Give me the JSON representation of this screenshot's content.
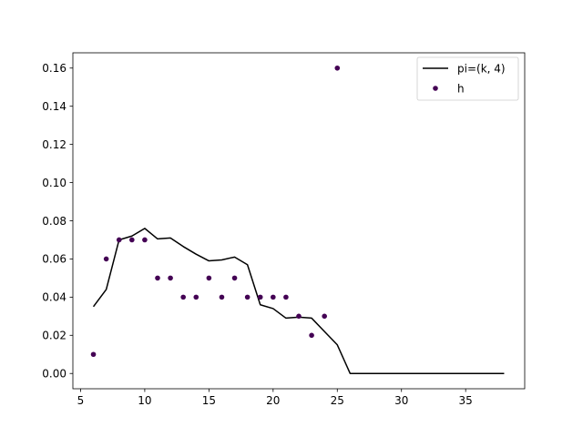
{
  "chart_data": {
    "type": "line",
    "title": "",
    "xlabel": "",
    "ylabel": "",
    "xlim": [
      4.4,
      39.6
    ],
    "ylim": [
      -0.008,
      0.168
    ],
    "xticks": [
      5,
      10,
      15,
      20,
      25,
      30,
      35
    ],
    "xtick_labels": [
      "5",
      "10",
      "15",
      "20",
      "25",
      "30",
      "35"
    ],
    "yticks": [
      0.0,
      0.02,
      0.04,
      0.06,
      0.08,
      0.1,
      0.12,
      0.14,
      0.16
    ],
    "ytick_labels": [
      "0.00",
      "0.02",
      "0.04",
      "0.06",
      "0.08",
      "0.10",
      "0.12",
      "0.14",
      "0.16"
    ],
    "grid": false,
    "legend_position": "top-right",
    "series": [
      {
        "name": "pi=(k, 4)",
        "kind": "line",
        "color": "#000000",
        "x": [
          6,
          7,
          8,
          9,
          10,
          11,
          12,
          13,
          14,
          15,
          16,
          17,
          18,
          19,
          20,
          21,
          22,
          23,
          24,
          25,
          26,
          27,
          28,
          29,
          30,
          31,
          32,
          33,
          34,
          35,
          36,
          37,
          38
        ],
        "y": [
          0.035,
          0.044,
          0.07,
          0.072,
          0.076,
          0.0705,
          0.071,
          0.0665,
          0.0625,
          0.059,
          0.0595,
          0.061,
          0.057,
          0.036,
          0.034,
          0.029,
          0.0295,
          0.029,
          0.022,
          0.015,
          0.0,
          0.0,
          0.0,
          0.0,
          0.0,
          0.0,
          0.0,
          0.0,
          0.0,
          0.0,
          0.0,
          0.0,
          0.0
        ]
      },
      {
        "name": "h",
        "kind": "scatter",
        "color": "#440154",
        "x": [
          6,
          7,
          8,
          9,
          10,
          11,
          12,
          13,
          14,
          15,
          16,
          17,
          18,
          19,
          20,
          21,
          22,
          23,
          24,
          25
        ],
        "y": [
          0.01,
          0.06,
          0.07,
          0.07,
          0.07,
          0.05,
          0.05,
          0.04,
          0.04,
          0.05,
          0.04,
          0.05,
          0.04,
          0.04,
          0.04,
          0.04,
          0.03,
          0.02,
          0.03,
          0.16
        ]
      }
    ]
  }
}
